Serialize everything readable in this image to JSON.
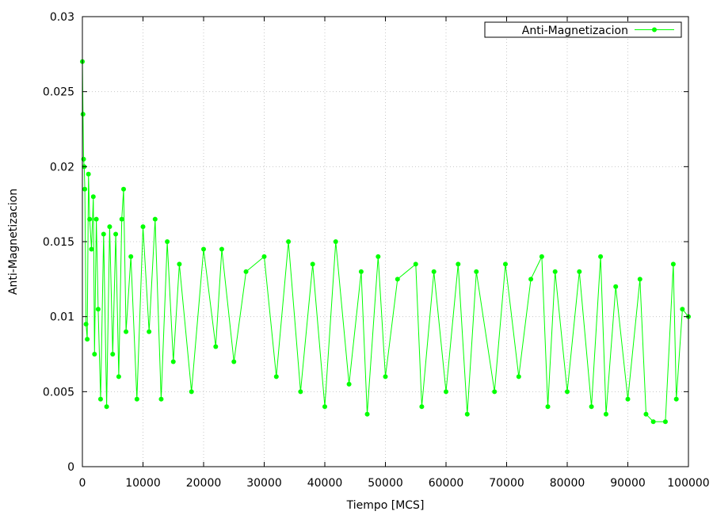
{
  "chart_data": {
    "type": "line",
    "title": "",
    "xlabel": "Tiempo [MCS]",
    "ylabel": "Anti-Magnetizacion",
    "xlim": [
      0,
      100000
    ],
    "ylim": [
      0,
      0.03
    ],
    "grid": true,
    "legend_position": "top-right",
    "x_ticks": [
      0,
      10000,
      20000,
      30000,
      40000,
      50000,
      60000,
      70000,
      80000,
      90000,
      100000
    ],
    "x_tick_labels": [
      "0",
      "10000",
      "20000",
      "30000",
      "40000",
      "50000",
      "60000",
      "70000",
      "80000",
      "90000",
      "100000"
    ],
    "y_ticks": [
      0,
      0.005,
      0.01,
      0.015,
      0.02,
      0.025,
      0.03
    ],
    "y_tick_labels": [
      "0",
      "0.005",
      "0.01",
      "0.015",
      "0.02",
      "0.025",
      "0.03"
    ],
    "series": [
      {
        "name": "Anti-Magnetizacion",
        "color": "#00ff00",
        "marker": "circle",
        "x": [
          0,
          100,
          200,
          300,
          400,
          600,
          800,
          1000,
          1200,
          1500,
          1800,
          2000,
          2300,
          2600,
          3000,
          3500,
          4000,
          4500,
          5000,
          5500,
          6000,
          6500,
          6800,
          7200,
          8000,
          9000,
          10000,
          11000,
          12000,
          13000,
          14000,
          15000,
          16000,
          18000,
          20000,
          22000,
          23000,
          25000,
          27000,
          30000,
          32000,
          34000,
          36000,
          38000,
          40000,
          41800,
          44000,
          46000,
          47000,
          48800,
          50000,
          52000,
          55000,
          56000,
          58000,
          60000,
          62000,
          63500,
          65000,
          68000,
          69800,
          72000,
          74000,
          75800,
          76800,
          78000,
          80000,
          82000,
          84000,
          85500,
          86400,
          88000,
          90000,
          92000,
          93000,
          94200,
          96200,
          97500,
          98000,
          99000,
          100000
        ],
        "y": [
          0.027,
          0.0235,
          0.0205,
          0.02,
          0.0185,
          0.0095,
          0.0085,
          0.0195,
          0.0165,
          0.0145,
          0.018,
          0.0075,
          0.0165,
          0.0105,
          0.0045,
          0.0155,
          0.004,
          0.016,
          0.0075,
          0.0155,
          0.006,
          0.0165,
          0.0185,
          0.009,
          0.014,
          0.0045,
          0.016,
          0.009,
          0.0165,
          0.0045,
          0.015,
          0.007,
          0.0135,
          0.005,
          0.0145,
          0.008,
          0.0145,
          0.007,
          0.013,
          0.014,
          0.006,
          0.015,
          0.005,
          0.0135,
          0.004,
          0.015,
          0.0055,
          0.013,
          0.0035,
          0.014,
          0.006,
          0.0125,
          0.0135,
          0.004,
          0.013,
          0.005,
          0.0135,
          0.0035,
          0.013,
          0.005,
          0.0135,
          0.006,
          0.0125,
          0.014,
          0.004,
          0.013,
          0.005,
          0.013,
          0.004,
          0.014,
          0.0035,
          0.012,
          0.0045,
          0.0125,
          0.0035,
          0.003,
          0.003,
          0.0135,
          0.0045,
          0.0105,
          0.01
        ]
      }
    ]
  }
}
